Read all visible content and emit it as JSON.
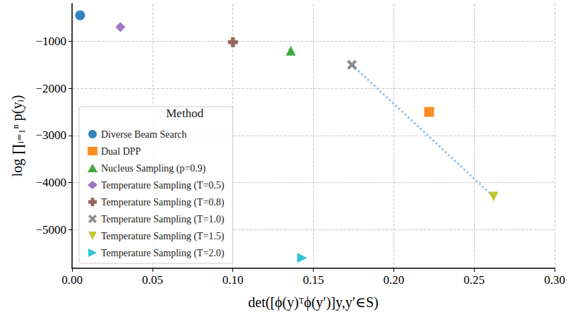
{
  "chart_data": {
    "type": "scatter",
    "x_label": "det([ϕ(y)ᵀϕ(y′)]y,y′∈S)",
    "y_label": "log ∏ᵢ₌₁ⁿ p(yᵢ)",
    "legend_title": "Method",
    "legend": "lower left",
    "grid": true,
    "xlim": [
      0,
      0.3
    ],
    "xticks": [
      {
        "value": 0,
        "label": "0.00"
      },
      {
        "value": 0.05,
        "label": "0.05"
      },
      {
        "value": 0.1,
        "label": "0.10"
      },
      {
        "value": 0.15,
        "label": "0.15"
      },
      {
        "value": 0.2,
        "label": "0.20"
      },
      {
        "value": 0.25,
        "label": "0.25"
      },
      {
        "value": 0.3,
        "label": "0.30"
      }
    ],
    "ylim": [
      -5820,
      -200
    ],
    "yticks": [
      {
        "value": -5000,
        "label": "−5000"
      },
      {
        "value": -4000,
        "label": "−4000"
      },
      {
        "value": -3000,
        "label": "−3000"
      },
      {
        "value": -2000,
        "label": "−2000"
      },
      {
        "value": -1000,
        "label": "−1000"
      }
    ],
    "series": [
      {
        "name": "Diverse Beam Search",
        "color": "#1f77b4",
        "marker": "circle",
        "x": [
          0.005
        ],
        "values": [
          -450
        ]
      },
      {
        "name": "Dual DPP",
        "color": "#ff7f0e",
        "marker": "square",
        "x": [
          0.222
        ],
        "values": [
          -2500
        ]
      },
      {
        "name": "Nucleus Sampling (p=0.9)",
        "color": "#2ca02c",
        "marker": "triangle_up",
        "x": [
          0.136
        ],
        "values": [
          -1200
        ]
      },
      {
        "name": "Temperature Sampling (T=0.5)",
        "color": "#9467bd",
        "marker": "diamond",
        "x": [
          0.03
        ],
        "values": [
          -700
        ]
      },
      {
        "name": "Temperature Sampling (T=0.8)",
        "color": "#8c564b",
        "marker": "plus",
        "x": [
          0.1
        ],
        "values": [
          -1020
        ]
      },
      {
        "name": "Temperature Sampling (T=1.0)",
        "color": "#7f7f7f",
        "marker": "x",
        "x": [
          0.174
        ],
        "values": [
          -1500
        ]
      },
      {
        "name": "Temperature Sampling (T=1.5)",
        "color": "#bcbd22",
        "marker": "triangle_down",
        "x": [
          0.262
        ],
        "values": [
          -4300
        ]
      },
      {
        "name": "Temperature Sampling (T=2.0)",
        "color": "#17becf",
        "marker": "triangle_right",
        "x": [
          0.143
        ],
        "values": [
          -5600
        ]
      }
    ],
    "connector": {
      "from": "Temperature Sampling (T=1.0)",
      "to": "Temperature Sampling (T=1.5)",
      "color": "#9ec5e8",
      "line_style": "dotted"
    }
  }
}
